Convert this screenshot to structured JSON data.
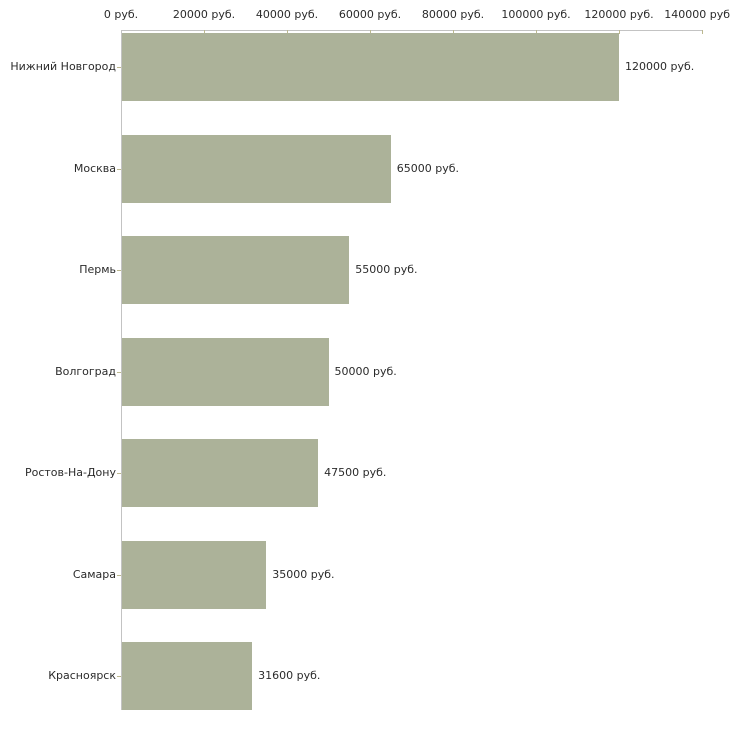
{
  "chart_data": {
    "type": "bar",
    "orientation": "horizontal",
    "title": "",
    "categories": [
      "Нижний Новгород",
      "Москва",
      "Пермь",
      "Волгоград",
      "Ростов-На-Дону",
      "Самара",
      "Красноярск"
    ],
    "values": [
      120000,
      65000,
      55000,
      50000,
      47500,
      35000,
      31600
    ],
    "bar_value_labels": [
      "120000 руб.",
      "65000 руб.",
      "55000 руб.",
      "50000 руб.",
      "47500 руб.",
      "35000 руб.",
      "31600 руб."
    ],
    "unit_suffix": "руб.",
    "x_axis": {
      "position": "top",
      "range": [
        0,
        140000
      ],
      "tick_values": [
        0,
        20000,
        40000,
        60000,
        80000,
        100000,
        120000,
        140000
      ],
      "tick_labels": [
        "0 руб.",
        "20000 руб.",
        "40000 руб.",
        "60000 руб.",
        "80000 руб.",
        "100000 руб.",
        "120000 руб.",
        "140000 руб"
      ]
    },
    "grid": false,
    "legend": false,
    "colors": {
      "bar": "#acb299",
      "axis_line": "#c3c3c3",
      "tick_mark": "#bcb88f",
      "text": "#2b2b2b",
      "background": "#ffffff"
    }
  }
}
